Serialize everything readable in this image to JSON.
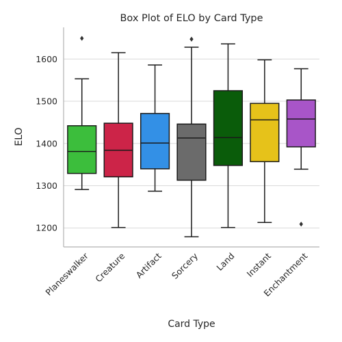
{
  "colors": {
    "background": "#ffffff",
    "grid": "#d9d9d9",
    "spine": "#b0b0b0",
    "line": "#1a1a1a"
  },
  "chart_data": {
    "type": "box",
    "title": "Box Plot of ELO by Card Type",
    "xlabel": "Card Type",
    "ylabel": "ELO",
    "ylim": [
      1155,
      1675
    ],
    "yticks": [
      1200,
      1300,
      1400,
      1500,
      1600
    ],
    "grid": "horizontal",
    "categories": [
      "Planeswalker",
      "Creature",
      "Artifact",
      "Sorcery",
      "Land",
      "Instant",
      "Enchantment"
    ],
    "boxes": [
      {
        "category": "Planeswalker",
        "whisker_low": 1291,
        "q1": 1329,
        "median": 1381,
        "q3": 1442,
        "whisker_high": 1553,
        "outliers": [
          1649
        ],
        "color": "#3cbe3c"
      },
      {
        "category": "Creature",
        "whisker_low": 1201,
        "q1": 1321,
        "median": 1384,
        "q3": 1448,
        "whisker_high": 1615,
        "outliers": [],
        "color": "#cc2448"
      },
      {
        "category": "Artifact",
        "whisker_low": 1287,
        "q1": 1340,
        "median": 1401,
        "q3": 1471,
        "whisker_high": 1586,
        "outliers": [],
        "color": "#3390e6"
      },
      {
        "category": "Sorcery",
        "whisker_low": 1179,
        "q1": 1313,
        "median": 1413,
        "q3": 1446,
        "whisker_high": 1628,
        "outliers": [
          1647
        ],
        "color": "#6b6b6b"
      },
      {
        "category": "Land",
        "whisker_low": 1201,
        "q1": 1348,
        "median": 1414,
        "q3": 1525,
        "whisker_high": 1636,
        "outliers": [],
        "color": "#0a5c0a"
      },
      {
        "category": "Instant",
        "whisker_low": 1213,
        "q1": 1357,
        "median": 1456,
        "q3": 1495,
        "whisker_high": 1598,
        "outliers": [],
        "color": "#e6c21a"
      },
      {
        "category": "Enchantment",
        "whisker_low": 1339,
        "q1": 1392,
        "median": 1458,
        "q3": 1503,
        "whisker_high": 1577,
        "outliers": [
          1209
        ],
        "color": "#a855c8"
      }
    ]
  }
}
